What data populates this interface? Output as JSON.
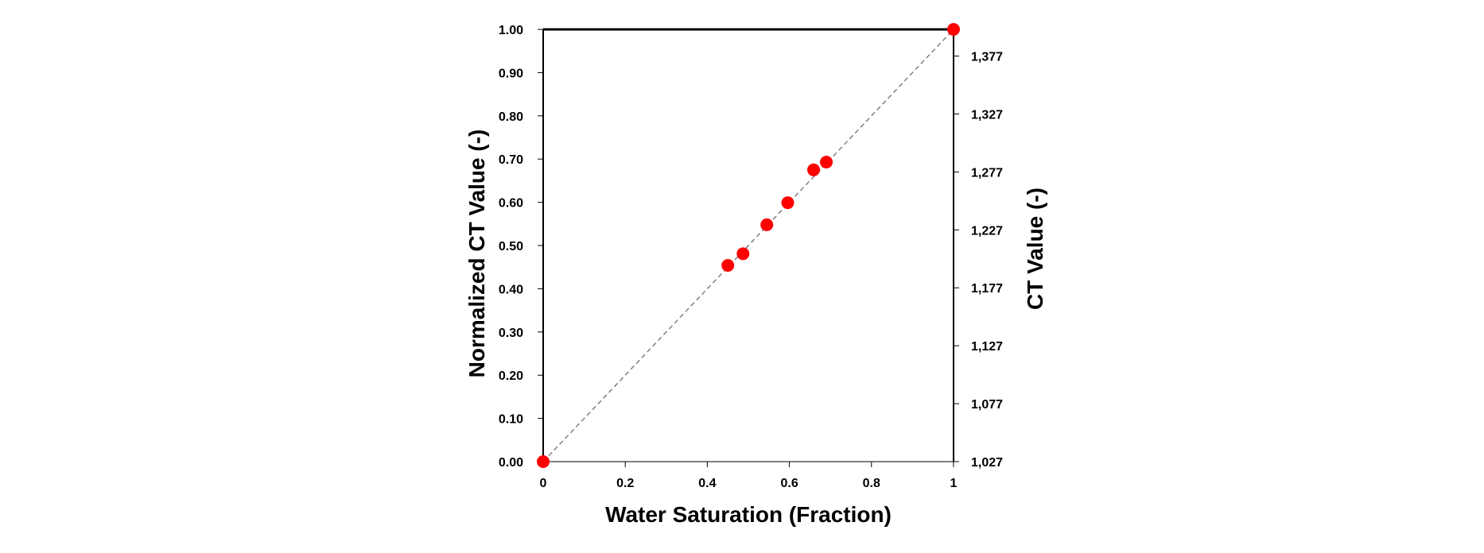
{
  "chart_data": {
    "type": "scatter",
    "title": "",
    "xlabel": "Water Saturation (Fraction)",
    "ylabel": "Normalized CT Value (-)",
    "y2label": "CT Value (-)",
    "xlim": [
      0,
      1
    ],
    "ylim": [
      0,
      1
    ],
    "y2lim": [
      1027,
      1400
    ],
    "x_ticks": [
      "0",
      "0.2",
      "0.4",
      "0.6",
      "0.8",
      "1"
    ],
    "x_tick_values": [
      0,
      0.2,
      0.4,
      0.6,
      0.8,
      1
    ],
    "y_ticks": [
      "0.00",
      "0.10",
      "0.20",
      "0.30",
      "0.40",
      "0.50",
      "0.60",
      "0.70",
      "0.80",
      "0.90",
      "1.00"
    ],
    "y_tick_values": [
      0,
      0.1,
      0.2,
      0.3,
      0.4,
      0.5,
      0.6,
      0.7,
      0.8,
      0.9,
      1.0
    ],
    "y2_ticks": [
      "1,027",
      "1,077",
      "1,127",
      "1,177",
      "1,227",
      "1,277",
      "1,327",
      "1,377"
    ],
    "y2_tick_values": [
      1027,
      1077,
      1127,
      1177,
      1227,
      1277,
      1327,
      1377
    ],
    "grid": false,
    "legend": "none",
    "points": [
      {
        "x": 0.0,
        "y": 0.0
      },
      {
        "x": 0.45,
        "y": 0.454
      },
      {
        "x": 0.487,
        "y": 0.481
      },
      {
        "x": 0.545,
        "y": 0.548
      },
      {
        "x": 0.596,
        "y": 0.599
      },
      {
        "x": 0.659,
        "y": 0.675
      },
      {
        "x": 0.69,
        "y": 0.693
      },
      {
        "x": 1.0,
        "y": 1.0
      }
    ],
    "reference_line": {
      "x": [
        0,
        1
      ],
      "y": [
        0,
        1
      ],
      "style": "dashed"
    },
    "marker_color": "#ff0000",
    "line_color": "#808080"
  }
}
